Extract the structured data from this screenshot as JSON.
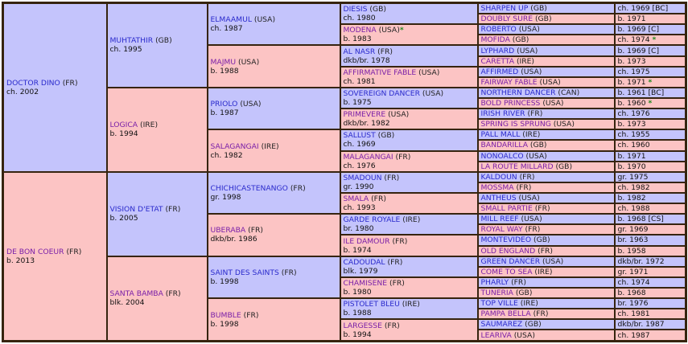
{
  "pedigree": {
    "gen1": [
      {
        "name": "DOCTOR DINO",
        "country": "(FR)",
        "detail": "ch. 2002",
        "sex": "m"
      },
      {
        "name": "DE BON COEUR",
        "country": "(FR)",
        "detail": "b. 2013",
        "sex": "f"
      }
    ],
    "gen2": [
      {
        "name": "MUHTATHIR",
        "country": "(GB)",
        "detail": "ch. 1995",
        "sex": "m"
      },
      {
        "name": "LOGICA",
        "country": "(IRE)",
        "detail": "b. 1994",
        "sex": "f"
      },
      {
        "name": "VISION D'ETAT",
        "country": "(FR)",
        "detail": "b. 2005",
        "sex": "m"
      },
      {
        "name": "SANTA BAMBA",
        "country": "(FR)",
        "detail": "blk. 2004",
        "sex": "f"
      }
    ],
    "gen3": [
      {
        "name": "ELMAAMUL",
        "country": "(USA)",
        "detail": "ch. 1987",
        "sex": "m"
      },
      {
        "name": "MAJMU",
        "country": "(USA)",
        "detail": "b. 1988",
        "sex": "f"
      },
      {
        "name": "PRIOLO",
        "country": "(USA)",
        "detail": "b. 1987",
        "sex": "m"
      },
      {
        "name": "SALAGANGAI",
        "country": "(IRE)",
        "detail": "ch. 1982",
        "sex": "f"
      },
      {
        "name": "CHICHICASTENANGO",
        "country": "(FR)",
        "detail": "gr. 1998",
        "sex": "m"
      },
      {
        "name": "UBERABA",
        "country": "(FR)",
        "detail": "dkb/br. 1986",
        "sex": "f"
      },
      {
        "name": "SAINT DES SAINTS",
        "country": "(FR)",
        "detail": "b. 1998",
        "sex": "m"
      },
      {
        "name": "BUMBLE",
        "country": "(FR)",
        "detail": "b. 1998",
        "sex": "f"
      }
    ],
    "gen4": [
      {
        "name": "DIESIS",
        "country": "(GB)",
        "detail": "ch. 1980",
        "sex": "m",
        "star": ""
      },
      {
        "name": "MODENA",
        "country": "(USA)",
        "detail": "b. 1983",
        "sex": "f",
        "star": "*"
      },
      {
        "name": "AL NASR",
        "country": "(FR)",
        "detail": "dkb/br. 1978",
        "sex": "m",
        "star": ""
      },
      {
        "name": "AFFIRMATIVE FABLE",
        "country": "(USA)",
        "detail": "ch. 1981",
        "sex": "f",
        "star": ""
      },
      {
        "name": "SOVEREIGN DANCER",
        "country": "(USA)",
        "detail": "b. 1975",
        "sex": "m",
        "star": ""
      },
      {
        "name": "PRIMEVERE",
        "country": "(USA)",
        "detail": "dkb/br. 1982",
        "sex": "f",
        "star": ""
      },
      {
        "name": "SALLUST",
        "country": "(GB)",
        "detail": "ch. 1969",
        "sex": "m",
        "star": ""
      },
      {
        "name": "MALAGANGAI",
        "country": "(FR)",
        "detail": "ch. 1976",
        "sex": "f",
        "star": ""
      },
      {
        "name": "SMADOUN",
        "country": "(FR)",
        "detail": "gr. 1990",
        "sex": "m",
        "star": ""
      },
      {
        "name": "SMALA",
        "country": "(FR)",
        "detail": "ch. 1993",
        "sex": "f",
        "star": ""
      },
      {
        "name": "GARDE ROYALE",
        "country": "(IRE)",
        "detail": "br. 1980",
        "sex": "m",
        "star": ""
      },
      {
        "name": "ILE DAMOUR",
        "country": "(FR)",
        "detail": "b. 1974",
        "sex": "f",
        "star": ""
      },
      {
        "name": "CADOUDAL",
        "country": "(FR)",
        "detail": "blk. 1979",
        "sex": "m",
        "star": ""
      },
      {
        "name": "CHAMISENE",
        "country": "(FR)",
        "detail": "b. 1980",
        "sex": "f",
        "star": ""
      },
      {
        "name": "PISTOLET BLEU",
        "country": "(IRE)",
        "detail": "b. 1988",
        "sex": "m",
        "star": ""
      },
      {
        "name": "LARGESSE",
        "country": "(FR)",
        "detail": "b. 1994",
        "sex": "f",
        "star": ""
      }
    ],
    "gen5": [
      {
        "name": "SHARPEN UP",
        "country": "(GB)",
        "detail": "ch. 1969 [BC]",
        "sex": "m",
        "star": ""
      },
      {
        "name": "DOUBLY SURE",
        "country": "(GB)",
        "detail": "b. 1971",
        "sex": "f",
        "star": ""
      },
      {
        "name": "ROBERTO",
        "country": "(USA)",
        "detail": "b. 1969 [C]",
        "sex": "m",
        "star": ""
      },
      {
        "name": "MOFIDA",
        "country": "(GB)",
        "detail": "ch. 1974",
        "sex": "f",
        "star": "*"
      },
      {
        "name": "LYPHARD",
        "country": "(USA)",
        "detail": "b. 1969 [C]",
        "sex": "m",
        "star": ""
      },
      {
        "name": "CARETTA",
        "country": "(IRE)",
        "detail": "b. 1973",
        "sex": "f",
        "star": ""
      },
      {
        "name": "AFFIRMED",
        "country": "(USA)",
        "detail": "ch. 1975",
        "sex": "m",
        "star": ""
      },
      {
        "name": "FAIRWAY FABLE",
        "country": "(USA)",
        "detail": "b. 1971",
        "sex": "f",
        "star": "*"
      },
      {
        "name": "NORTHERN DANCER",
        "country": "(CAN)",
        "detail": "b. 1961 [BC]",
        "sex": "m",
        "star": ""
      },
      {
        "name": "BOLD PRINCESS",
        "country": "(USA)",
        "detail": "b. 1960",
        "sex": "f",
        "star": "*"
      },
      {
        "name": "IRISH RIVER",
        "country": "(FR)",
        "detail": "ch. 1976",
        "sex": "m",
        "star": ""
      },
      {
        "name": "SPRING IS SPRUNG",
        "country": "(USA)",
        "detail": "b. 1973",
        "sex": "f",
        "star": ""
      },
      {
        "name": "PALL MALL",
        "country": "(IRE)",
        "detail": "ch. 1955",
        "sex": "m",
        "star": ""
      },
      {
        "name": "BANDARILLA",
        "country": "(GB)",
        "detail": "ch. 1960",
        "sex": "f",
        "star": ""
      },
      {
        "name": "NONOALCO",
        "country": "(USA)",
        "detail": "b. 1971",
        "sex": "m",
        "star": ""
      },
      {
        "name": "LA ROUTE MILLARD",
        "country": "(GB)",
        "detail": "b. 1970",
        "sex": "f",
        "star": ""
      },
      {
        "name": "KALDOUN",
        "country": "(FR)",
        "detail": "gr. 1975",
        "sex": "m",
        "star": ""
      },
      {
        "name": "MOSSMA",
        "country": "(FR)",
        "detail": "ch. 1982",
        "sex": "f",
        "star": ""
      },
      {
        "name": "ANTHEUS",
        "country": "(USA)",
        "detail": "b. 1982",
        "sex": "m",
        "star": ""
      },
      {
        "name": "SMALL PARTIE",
        "country": "(FR)",
        "detail": "ch. 1988",
        "sex": "f",
        "star": ""
      },
      {
        "name": "MILL REEF",
        "country": "(USA)",
        "detail": "b. 1968 [CS]",
        "sex": "m",
        "star": ""
      },
      {
        "name": "ROYAL WAY",
        "country": "(FR)",
        "detail": "gr. 1969",
        "sex": "f",
        "star": ""
      },
      {
        "name": "MONTEVIDEO",
        "country": "(GB)",
        "detail": "br. 1963",
        "sex": "m",
        "star": ""
      },
      {
        "name": "OLD ENGLAND",
        "country": "(FR)",
        "detail": "b. 1958",
        "sex": "f",
        "star": ""
      },
      {
        "name": "GREEN DANCER",
        "country": "(USA)",
        "detail": "dkb/br. 1972",
        "sex": "m",
        "star": ""
      },
      {
        "name": "COME TO SEA",
        "country": "(IRE)",
        "detail": "gr. 1971",
        "sex": "f",
        "star": ""
      },
      {
        "name": "PHARLY",
        "country": "(FR)",
        "detail": "ch. 1974",
        "sex": "m",
        "star": ""
      },
      {
        "name": "TUNERIA",
        "country": "(GB)",
        "detail": "b. 1968",
        "sex": "f",
        "star": ""
      },
      {
        "name": "TOP VILLE",
        "country": "(IRE)",
        "detail": "br. 1976",
        "sex": "m",
        "star": ""
      },
      {
        "name": "PAMPA BELLA",
        "country": "(FR)",
        "detail": "ch. 1981",
        "sex": "f",
        "star": ""
      },
      {
        "name": "SAUMAREZ",
        "country": "(GB)",
        "detail": "dkb/br. 1987",
        "sex": "m",
        "star": ""
      },
      {
        "name": "LEARIVA",
        "country": "(USA)",
        "detail": "ch. 1987",
        "sex": "f",
        "star": ""
      }
    ]
  },
  "colors": {
    "male_bg": "#c4c4fc",
    "female_bg": "#fcc4c4",
    "border": "#36240f",
    "male_link": "#2a2acc",
    "female_link": "#7a1fa8",
    "star": "#1e8a1e"
  }
}
